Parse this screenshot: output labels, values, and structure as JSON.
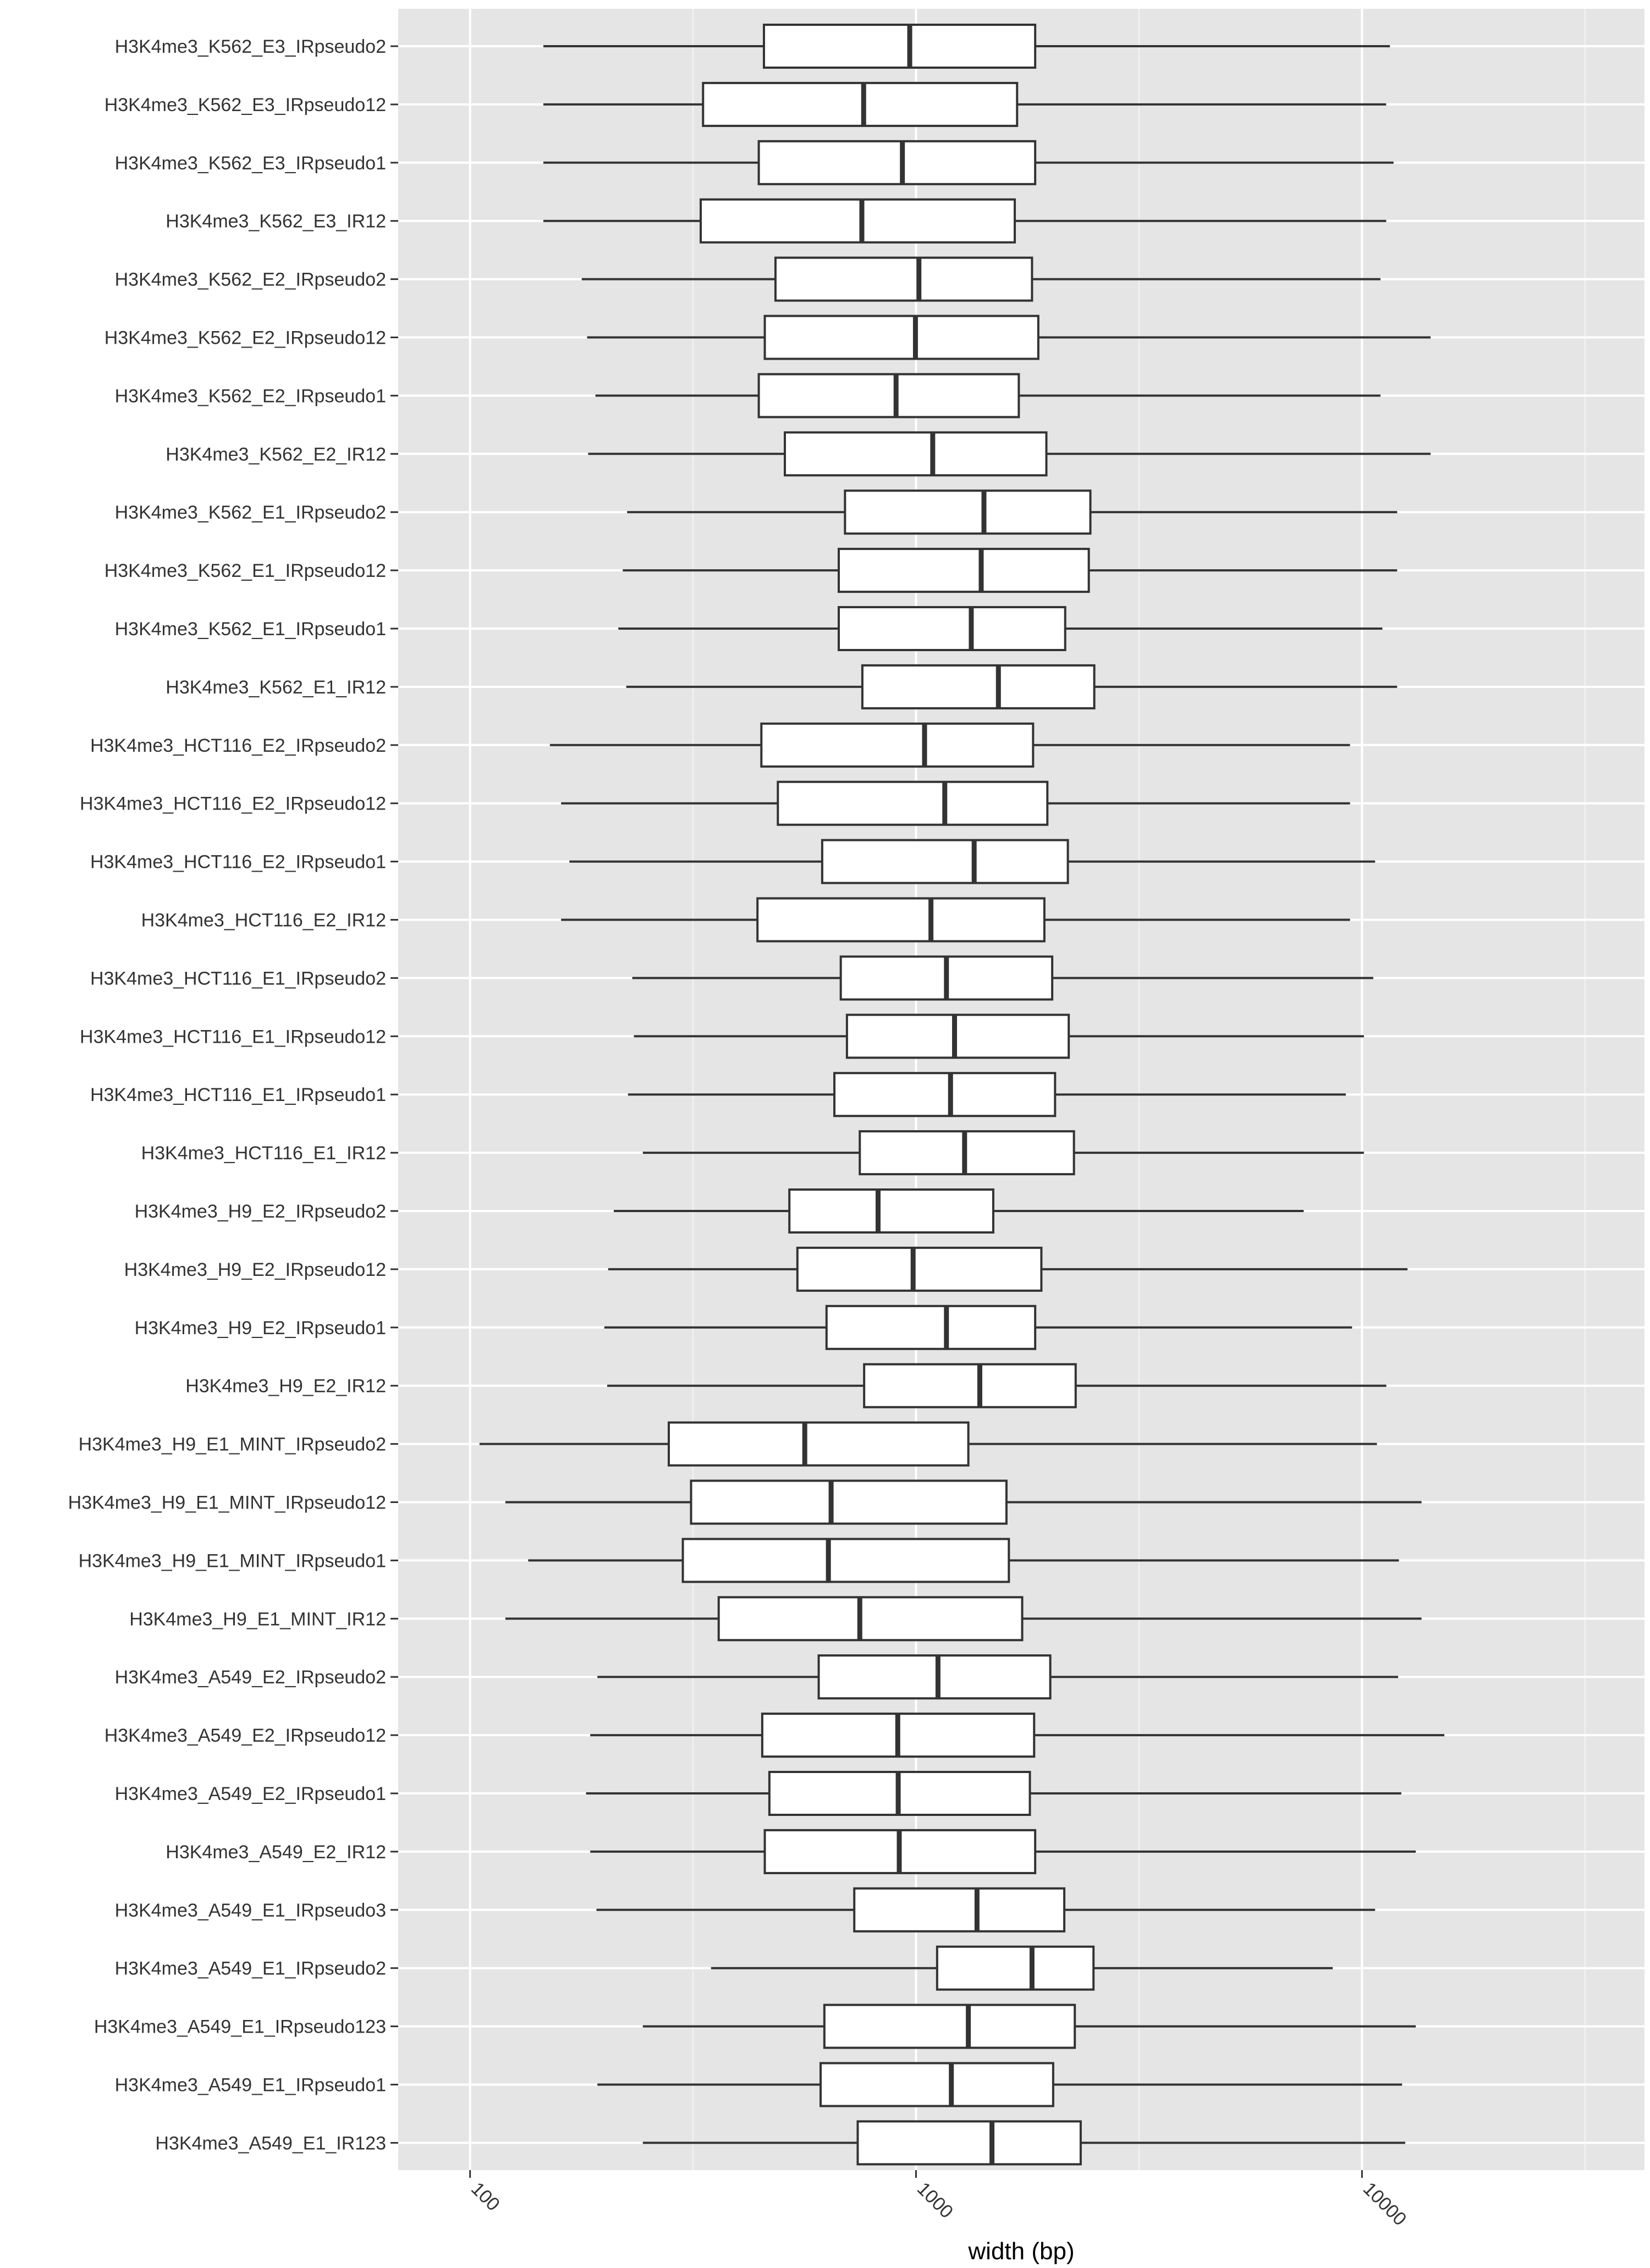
{
  "chart_data": {
    "type": "boxplot",
    "orientation": "horizontal",
    "xlabel": "width (bp)",
    "ylabel": "",
    "title": "",
    "x_scale": "log10",
    "xlim": [
      69,
      43000
    ],
    "x_ticks": [
      100,
      1000,
      10000
    ],
    "x_tick_labels": [
      "100",
      "1000",
      "10000"
    ],
    "grid": true,
    "colors": {
      "panel_background": "#E5E5E5",
      "grid_major": "#FFFFFF",
      "grid_minor": "#F2F2F2",
      "box_fill": "#FFFFFF",
      "box_line": "#333333"
    },
    "categories": [
      "H3K4me3_K562_E3_IRpseudo2",
      "H3K4me3_K562_E3_IRpseudo12",
      "H3K4me3_K562_E3_IRpseudo1",
      "H3K4me3_K562_E3_IR12",
      "H3K4me3_K562_E2_IRpseudo2",
      "H3K4me3_K562_E2_IRpseudo12",
      "H3K4me3_K562_E2_IRpseudo1",
      "H3K4me3_K562_E2_IR12",
      "H3K4me3_K562_E1_IRpseudo2",
      "H3K4me3_K562_E1_IRpseudo12",
      "H3K4me3_K562_E1_IRpseudo1",
      "H3K4me3_K562_E1_IR12",
      "H3K4me3_HCT116_E2_IRpseudo2",
      "H3K4me3_HCT116_E2_IRpseudo12",
      "H3K4me3_HCT116_E2_IRpseudo1",
      "H3K4me3_HCT116_E2_IR12",
      "H3K4me3_HCT116_E1_IRpseudo2",
      "H3K4me3_HCT116_E1_IRpseudo12",
      "H3K4me3_HCT116_E1_IRpseudo1",
      "H3K4me3_HCT116_E1_IR12",
      "H3K4me3_H9_E2_IRpseudo2",
      "H3K4me3_H9_E2_IRpseudo12",
      "H3K4me3_H9_E2_IRpseudo1",
      "H3K4me3_H9_E2_IR12",
      "H3K4me3_H9_E1_MINT_IRpseudo2",
      "H3K4me3_H9_E1_MINT_IRpseudo12",
      "H3K4me3_H9_E1_MINT_IRpseudo1",
      "H3K4me3_H9_E1_MINT_IR12",
      "H3K4me3_A549_E2_IRpseudo2",
      "H3K4me3_A549_E2_IRpseudo12",
      "H3K4me3_A549_E2_IRpseudo1",
      "H3K4me3_A549_E2_IR12",
      "H3K4me3_A549_E1_IRpseudo3",
      "H3K4me3_A549_E1_IRpseudo2",
      "H3K4me3_A549_E1_IRpseudo123",
      "H3K4me3_A549_E1_IRpseudo1",
      "H3K4me3_A549_E1_IR123"
    ],
    "boxes": [
      {
        "min": 146,
        "q1": 456,
        "median": 968,
        "q3": 1850,
        "max": 11550
      },
      {
        "min": 146,
        "q1": 333,
        "median": 763,
        "q3": 1685,
        "max": 11330
      },
      {
        "min": 146,
        "q1": 444,
        "median": 932,
        "q3": 1850,
        "max": 11770
      },
      {
        "min": 146,
        "q1": 329,
        "median": 756,
        "q3": 1665,
        "max": 11330
      },
      {
        "min": 178,
        "q1": 484,
        "median": 1015,
        "q3": 1820,
        "max": 11000
      },
      {
        "min": 183,
        "q1": 458,
        "median": 997,
        "q3": 1880,
        "max": 14250
      },
      {
        "min": 191,
        "q1": 444,
        "median": 902,
        "q3": 1700,
        "max": 11000
      },
      {
        "min": 184,
        "q1": 508,
        "median": 1090,
        "q3": 1960,
        "max": 14250
      },
      {
        "min": 225,
        "q1": 693,
        "median": 1420,
        "q3": 2460,
        "max": 11990
      },
      {
        "min": 220,
        "q1": 671,
        "median": 1400,
        "q3": 2440,
        "max": 11990
      },
      {
        "min": 215,
        "q1": 671,
        "median": 1330,
        "q3": 2160,
        "max": 11110
      },
      {
        "min": 224,
        "q1": 758,
        "median": 1530,
        "q3": 2510,
        "max": 11990
      },
      {
        "min": 151,
        "q1": 450,
        "median": 1045,
        "q3": 1830,
        "max": 9400
      },
      {
        "min": 160,
        "q1": 490,
        "median": 1160,
        "q3": 1970,
        "max": 9400
      },
      {
        "min": 167,
        "q1": 616,
        "median": 1350,
        "q3": 2190,
        "max": 10700
      },
      {
        "min": 160,
        "q1": 441,
        "median": 1080,
        "q3": 1940,
        "max": 9400
      },
      {
        "min": 231,
        "q1": 678,
        "median": 1170,
        "q3": 2020,
        "max": 10600
      },
      {
        "min": 233,
        "q1": 700,
        "median": 1220,
        "q3": 2200,
        "max": 10100
      },
      {
        "min": 226,
        "q1": 656,
        "median": 1195,
        "q3": 2050,
        "max": 9200
      },
      {
        "min": 244,
        "q1": 748,
        "median": 1285,
        "q3": 2260,
        "max": 10100
      },
      {
        "min": 210,
        "q1": 520,
        "median": 822,
        "q3": 1490,
        "max": 7400
      },
      {
        "min": 204,
        "q1": 542,
        "median": 985,
        "q3": 1910,
        "max": 12650
      },
      {
        "min": 200,
        "q1": 630,
        "median": 1170,
        "q3": 1850,
        "max": 9500
      },
      {
        "min": 203,
        "q1": 765,
        "median": 1390,
        "q3": 2280,
        "max": 11340
      },
      {
        "min": 105,
        "q1": 279,
        "median": 563,
        "q3": 1310,
        "max": 10800
      },
      {
        "min": 120,
        "q1": 313,
        "median": 645,
        "q3": 1595,
        "max": 13600
      },
      {
        "min": 135,
        "q1": 300,
        "median": 636,
        "q3": 1615,
        "max": 12100
      },
      {
        "min": 120,
        "q1": 361,
        "median": 748,
        "q3": 1730,
        "max": 13600
      },
      {
        "min": 193,
        "q1": 605,
        "median": 1120,
        "q3": 2000,
        "max": 12050
      },
      {
        "min": 186,
        "q1": 452,
        "median": 910,
        "q3": 1840,
        "max": 15300
      },
      {
        "min": 182,
        "q1": 469,
        "median": 912,
        "q3": 1800,
        "max": 12250
      },
      {
        "min": 186,
        "q1": 458,
        "median": 917,
        "q3": 1850,
        "max": 13200
      },
      {
        "min": 192,
        "q1": 727,
        "median": 1370,
        "q3": 2150,
        "max": 10700
      },
      {
        "min": 347,
        "q1": 1115,
        "median": 1820,
        "q3": 2500,
        "max": 8600
      },
      {
        "min": 244,
        "q1": 623,
        "median": 1310,
        "q3": 2270,
        "max": 13200
      },
      {
        "min": 193,
        "q1": 611,
        "median": 1200,
        "q3": 2030,
        "max": 12300
      },
      {
        "min": 244,
        "q1": 740,
        "median": 1480,
        "q3": 2340,
        "max": 12500
      }
    ]
  }
}
